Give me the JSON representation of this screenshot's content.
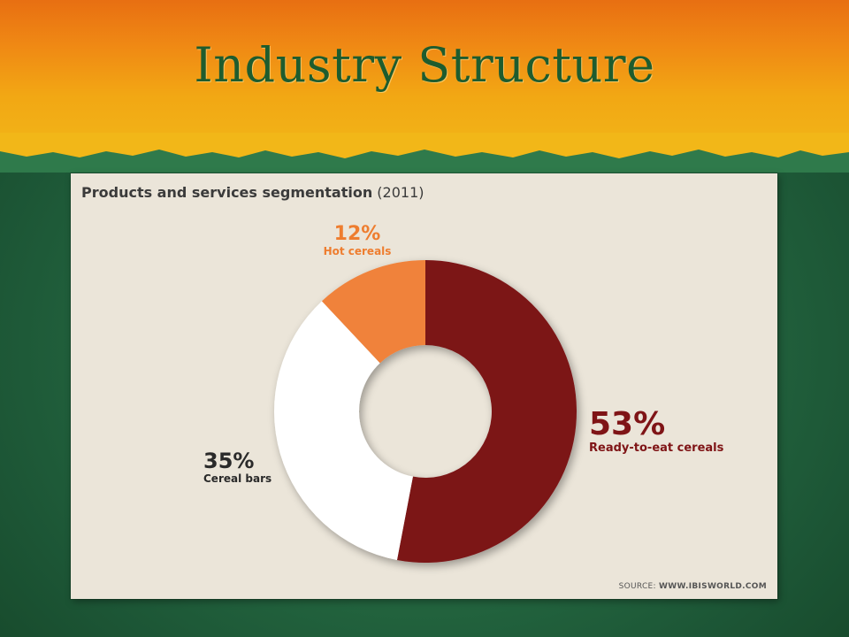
{
  "slide": {
    "title": "Industry Structure"
  },
  "panel": {
    "heading": "Products and services segmentation",
    "year": "(2011)",
    "source_prefix": "SOURCE:",
    "source_site": "WWW.IBISWORLD.COM"
  },
  "colors": {
    "ready_to_eat": "#7b1216",
    "cereal_bars": "#ffffff",
    "hot_cereals": "#f0823a",
    "panel_bg": "#ebe5d9",
    "slide_green": "#256a42",
    "slide_orange": "#f08a14"
  },
  "chart_data": {
    "type": "pie",
    "title": "Products and services segmentation (2011)",
    "donut": true,
    "series": [
      {
        "name": "Ready-to-eat cereals",
        "value": 53,
        "display": "53%",
        "color": "#7b1216"
      },
      {
        "name": "Cereal bars",
        "value": 35,
        "display": "35%",
        "color": "#ffffff"
      },
      {
        "name": "Hot cereals",
        "value": 12,
        "display": "12%",
        "color": "#f0823a"
      }
    ]
  }
}
